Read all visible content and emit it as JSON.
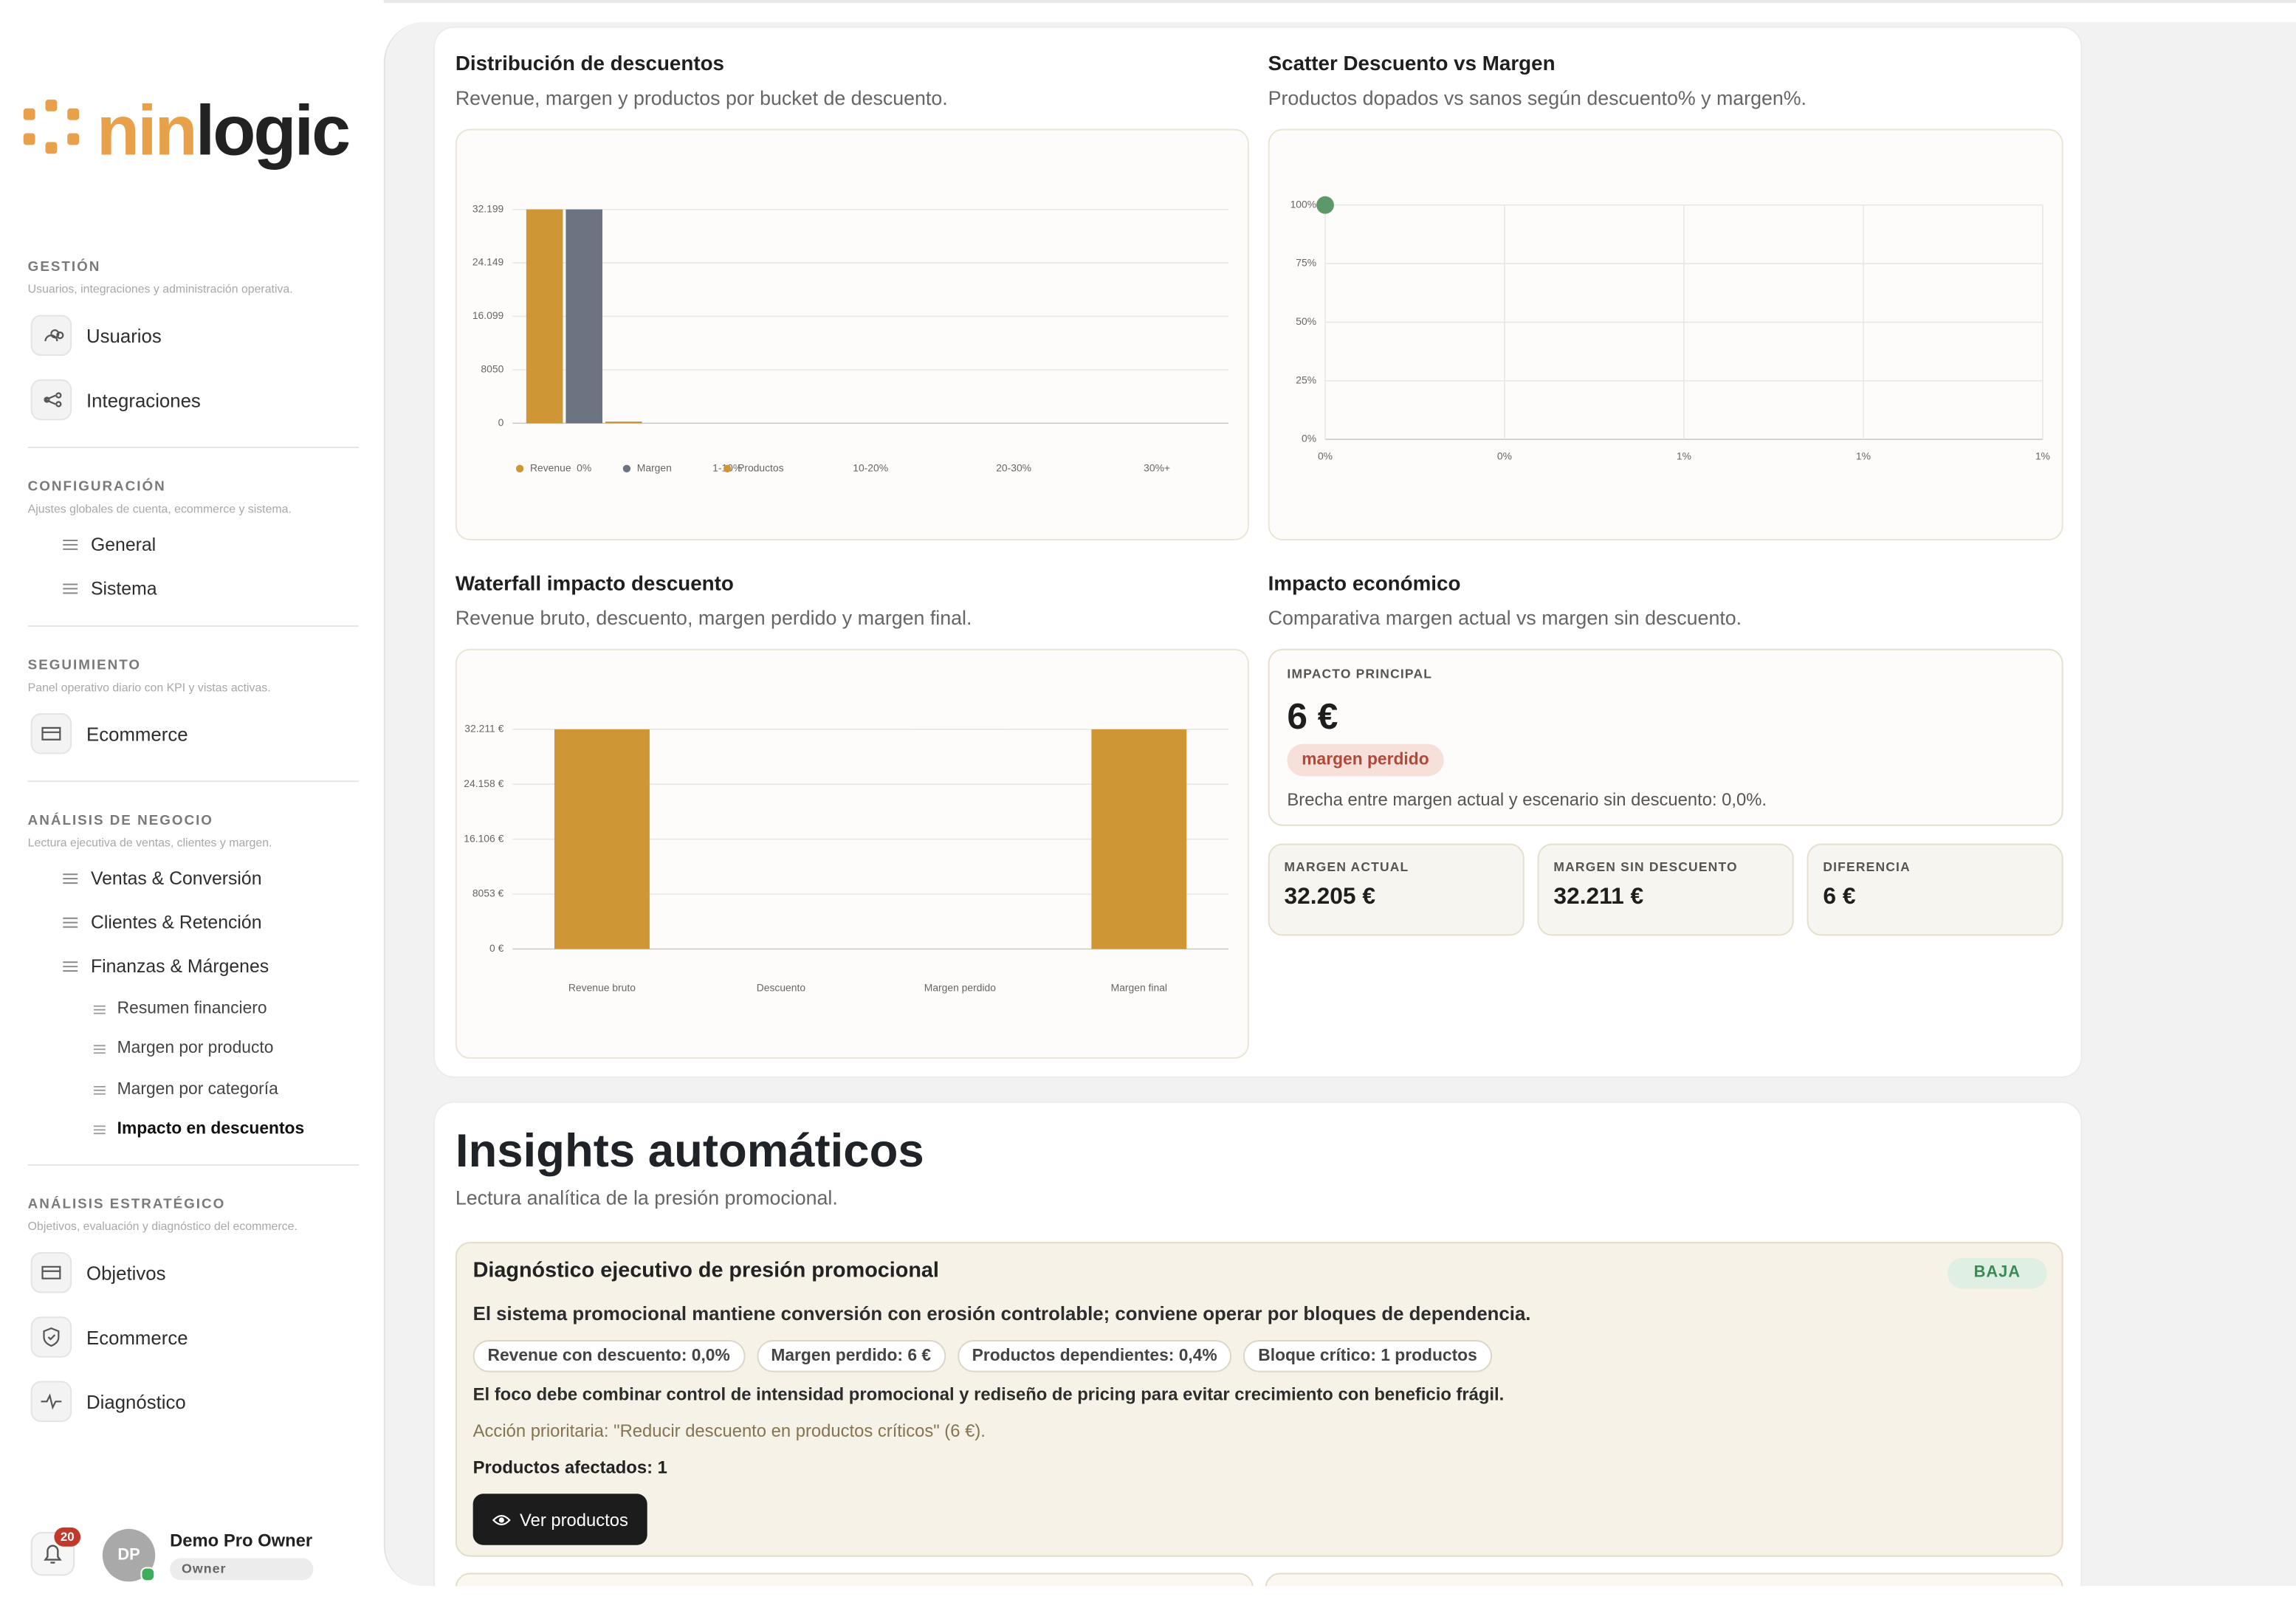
{
  "sidebar": {
    "logo": {
      "prefix": "nin",
      "suffix": "logic"
    },
    "sections": [
      {
        "title": "GESTIÓN",
        "subtitle": "Usuarios, integraciones y administración operativa.",
        "style": "boxed",
        "items": [
          {
            "label": "Usuarios"
          },
          {
            "label": "Integraciones"
          }
        ]
      },
      {
        "title": "CONFIGURACIÓN",
        "subtitle": "Ajustes globales de cuenta, ecommerce y sistema.",
        "style": "plain",
        "items": [
          {
            "label": "General"
          },
          {
            "label": "Sistema"
          }
        ]
      },
      {
        "title": "SEGUIMIENTO",
        "subtitle": "Panel operativo diario con KPI y vistas activas.",
        "style": "boxed",
        "items": [
          {
            "label": "Ecommerce"
          }
        ]
      },
      {
        "title": "ANÁLISIS DE NEGOCIO",
        "subtitle": "Lectura ejecutiva de ventas, clientes y margen.",
        "style": "plain",
        "items": [
          {
            "label": "Ventas & Conversión"
          },
          {
            "label": "Clientes & Retención"
          },
          {
            "label": "Finanzas & Márgenes",
            "children": [
              {
                "label": "Resumen financiero"
              },
              {
                "label": "Margen por producto"
              },
              {
                "label": "Margen por categoría"
              },
              {
                "label": "Impacto en descuentos",
                "active": true
              }
            ]
          }
        ]
      },
      {
        "title": "ANÁLISIS ESTRATÉGICO",
        "subtitle": "Objetivos, evaluación y diagnóstico del ecommerce.",
        "style": "boxed",
        "items": [
          {
            "label": "Objetivos"
          },
          {
            "label": "Ecommerce"
          },
          {
            "label": "Diagnóstico"
          }
        ]
      }
    ],
    "footer": {
      "notifications": 20,
      "initials": "DP",
      "name": "Demo Pro Owner",
      "role": "Owner"
    }
  },
  "distribution": {
    "title": "Distribución de descuentos",
    "subtitle": "Revenue, margen y productos por bucket de descuento.",
    "chart": {
      "type": "bar",
      "categories": [
        "0%",
        "1-10%",
        "10-20%",
        "20-30%",
        "30%+"
      ],
      "series": [
        {
          "name": "Revenue",
          "color": "#cf9636",
          "values": [
            32199,
            0,
            0,
            0,
            0
          ]
        },
        {
          "name": "Margen",
          "color": "#6b7280",
          "values": [
            32199,
            0,
            0,
            0,
            0
          ]
        },
        {
          "name": "Productos",
          "color": "#cf9636",
          "values": [
            250,
            0,
            0,
            0,
            0
          ]
        }
      ],
      "ylim": [
        0,
        32199
      ],
      "yticks": [
        0,
        8050,
        {
          "value": 16099,
          "label": "16.099"
        },
        {
          "value": 24149,
          "label": "24.149"
        },
        {
          "value": 32199,
          "label": "32.199"
        }
      ],
      "grid": true,
      "legend": "bottom-left"
    }
  },
  "scatter": {
    "title": "Scatter Descuento vs Margen",
    "subtitle": "Productos dopados vs sanos según descuento% y margen%.",
    "chart": {
      "type": "scatter",
      "x": [
        0
      ],
      "values": [
        100
      ],
      "color": "#5b9a68",
      "xlim": [
        0,
        1
      ],
      "xticks": [
        {
          "value": 0,
          "label": "0%"
        },
        {
          "value": 0.25,
          "label": "0%"
        },
        {
          "value": 0.5,
          "label": "1%"
        },
        {
          "value": 0.75,
          "label": "1%"
        },
        {
          "value": 1,
          "label": "1%"
        }
      ],
      "ylim": [
        0,
        100
      ],
      "yticks": [
        {
          "value": 0,
          "label": "0%"
        },
        {
          "value": 25,
          "label": "25%"
        },
        {
          "value": 50,
          "label": "50%"
        },
        {
          "value": 75,
          "label": "75%"
        },
        {
          "value": 100,
          "label": "100%"
        }
      ],
      "grid": true
    }
  },
  "waterfall": {
    "title": "Waterfall impacto descuento",
    "subtitle": "Revenue bruto, descuento, margen perdido y margen final.",
    "chart": {
      "type": "waterfall",
      "categories": [
        "Revenue bruto",
        "Descuento",
        "Margen perdido",
        "Margen final"
      ],
      "values": [
        32211,
        0,
        6,
        32205
      ],
      "color": "#cf9636",
      "ylim": [
        0,
        32211
      ],
      "yticks": [
        {
          "value": 0,
          "label": "0 €"
        },
        {
          "value": 8053,
          "label": "8053 €"
        },
        {
          "value": 16106,
          "label": "16.106 €"
        },
        {
          "value": 24158,
          "label": "24.158 €"
        },
        {
          "value": 32211,
          "label": "32.211 €"
        }
      ],
      "grid": true
    }
  },
  "impact": {
    "title": "Impacto económico",
    "subtitle": "Comparativa margen actual vs margen sin descuento.",
    "main": {
      "label": "IMPACTO PRINCIPAL",
      "value": "6 €",
      "badge": "margen perdido",
      "note": "Brecha entre margen actual y escenario sin descuento: 0,0%."
    },
    "cards": [
      {
        "label": "MARGEN ACTUAL",
        "value": "32.205 €"
      },
      {
        "label": "MARGEN SIN DESCUENTO",
        "value": "32.211 €"
      },
      {
        "label": "DIFERENCIA",
        "value": "6 €"
      }
    ]
  },
  "insights": {
    "title": "Insights automáticos",
    "subtitle": "Lectura analítica de la presión promocional.",
    "card": {
      "title": "Diagnóstico ejecutivo de presión promocional",
      "badge": "BAJA",
      "headline": "El sistema promocional mantiene conversión con erosión controlable; conviene operar por bloques de dependencia.",
      "chips": [
        "Revenue con descuento: 0,0%",
        "Margen perdido: 6 €",
        "Productos dependientes: 0,4%",
        "Bloque crítico: 1 productos"
      ],
      "focus": "El foco debe combinar control de intensidad promocional y rediseño de pricing para evitar crecimiento con beneficio frágil.",
      "action": "Acción prioritaria: \"Reducir descuento en productos críticos\" (6 €).",
      "affected": "Productos afectados: 1",
      "button": "Ver productos"
    }
  }
}
